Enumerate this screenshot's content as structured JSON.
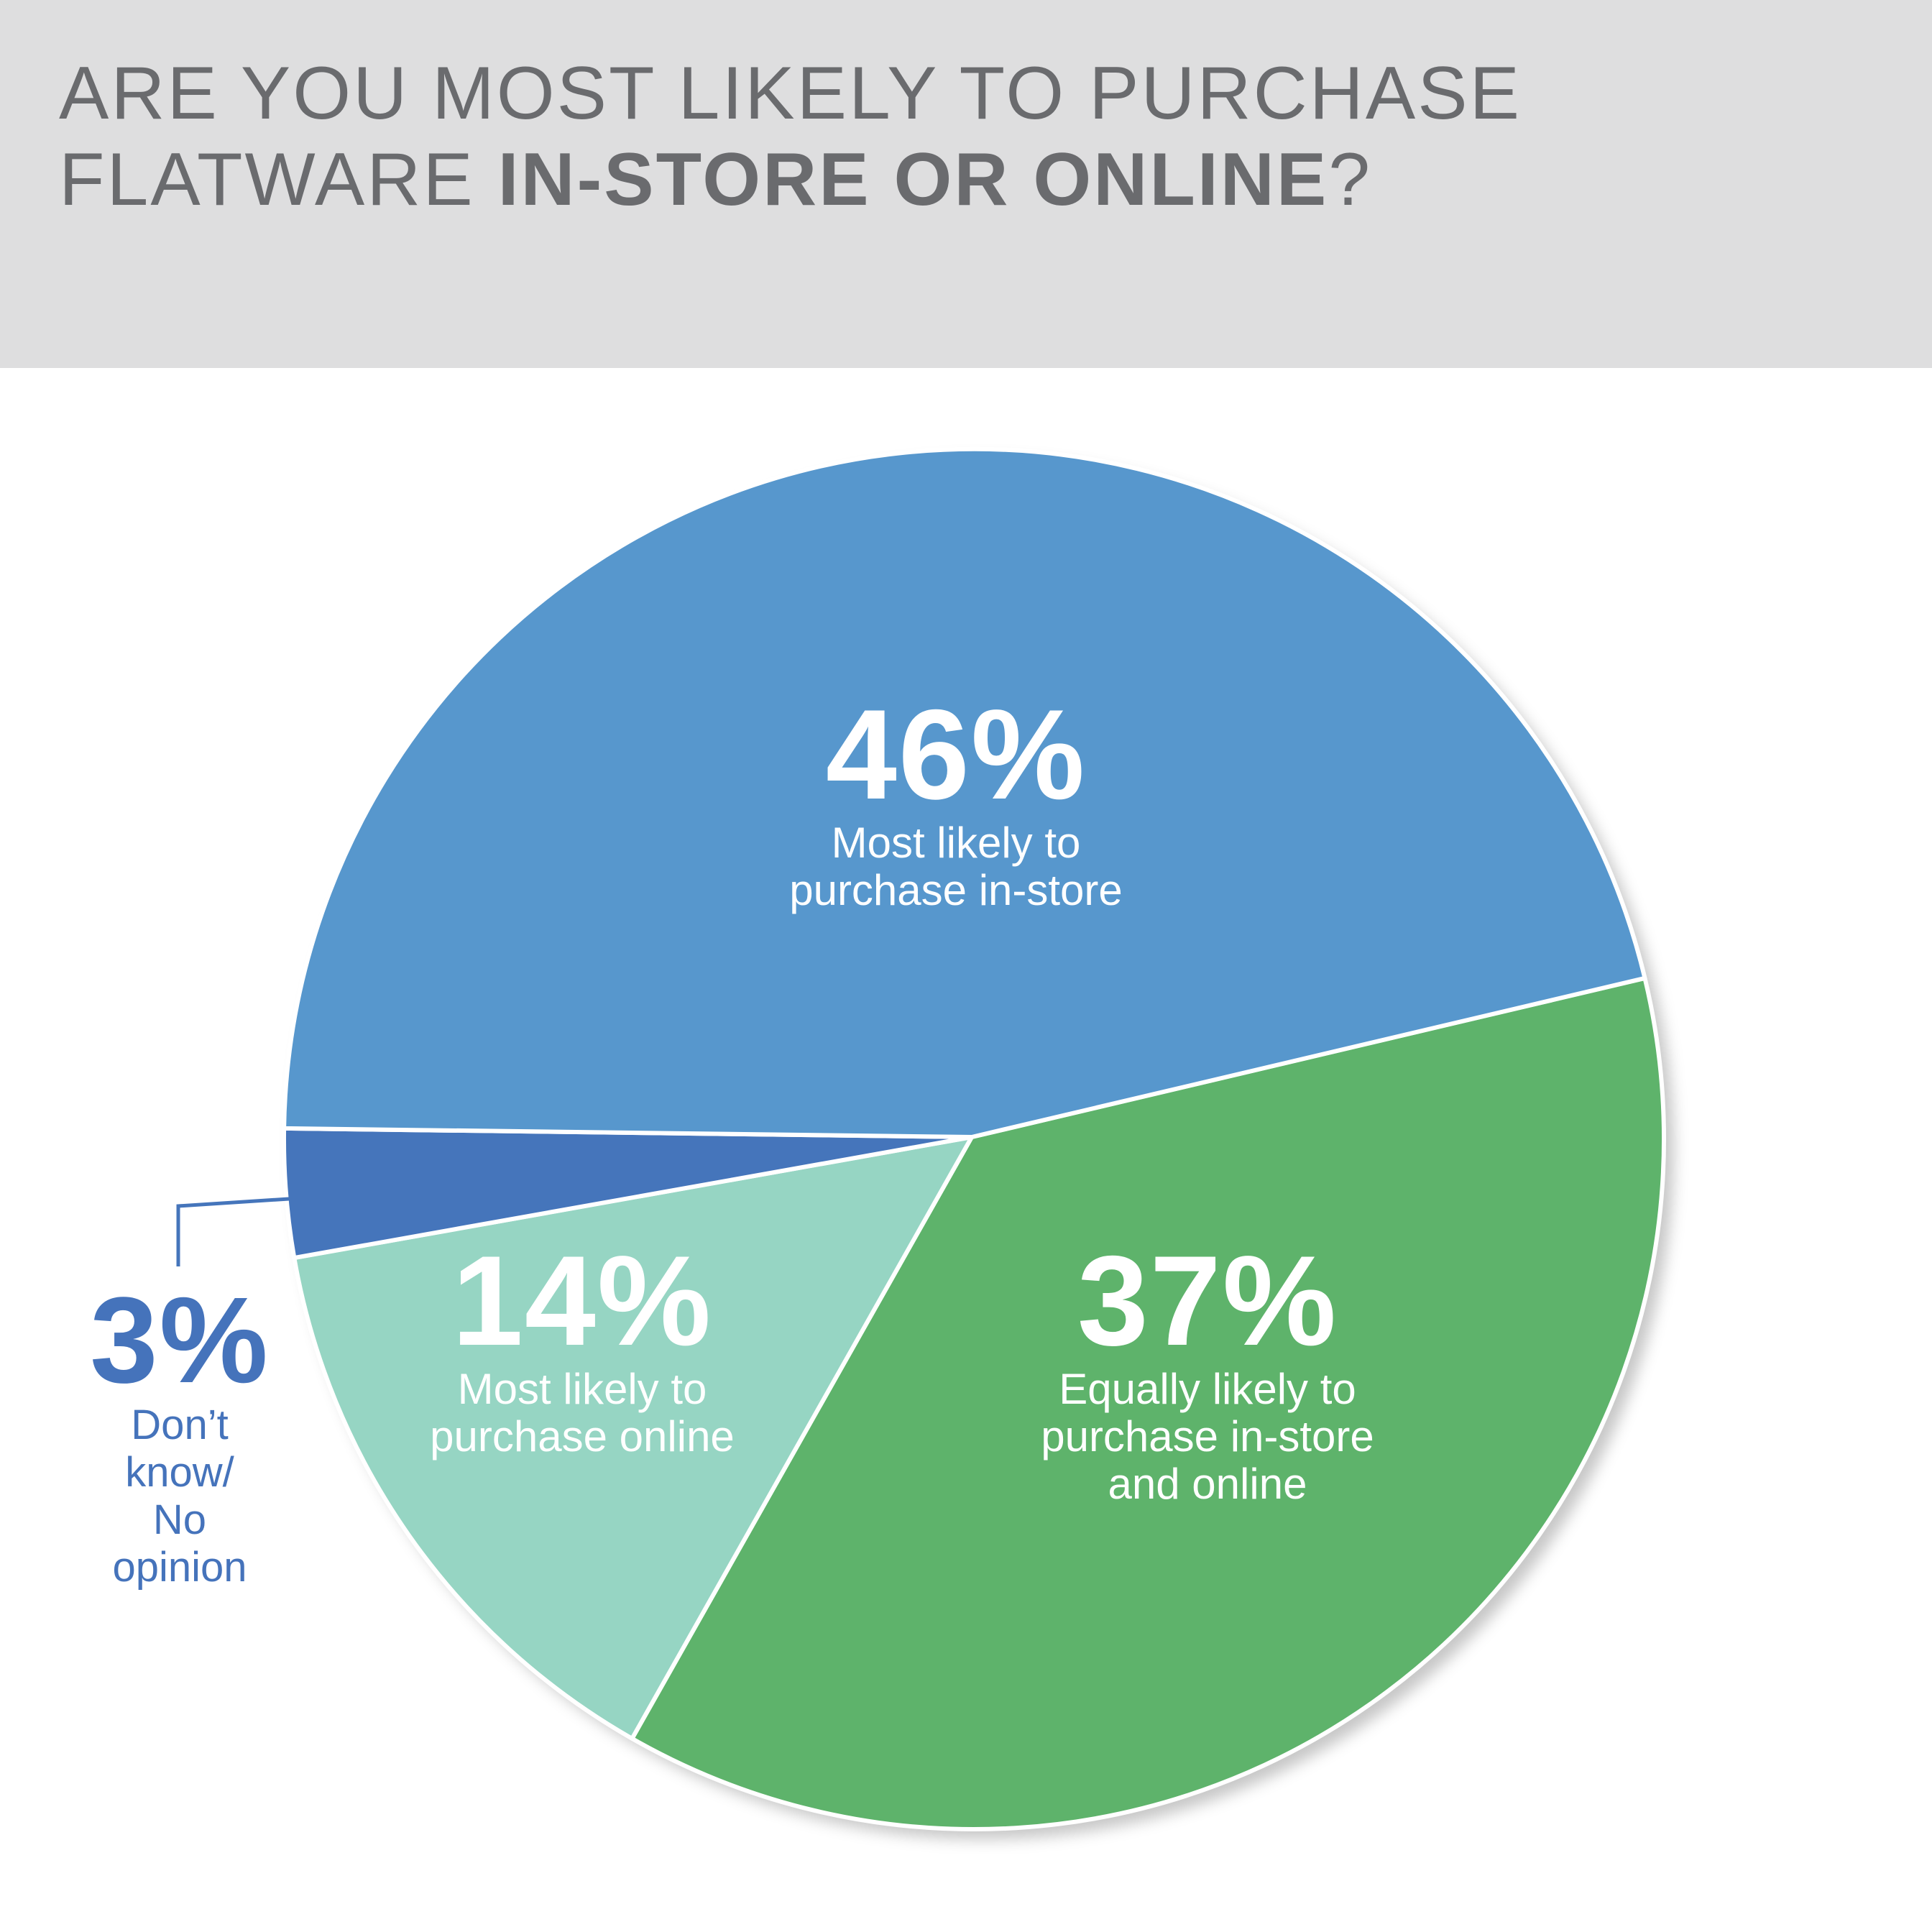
{
  "header": {
    "title_line1": "ARE YOU MOST LIKELY TO PURCHASE",
    "title_line2_regular": "FLATWARE ",
    "title_line2_bold": "IN-STORE OR ONLINE",
    "title_line2_end": "?"
  },
  "colors": {
    "header_bg": "#dededf",
    "title_text": "#6a6b6e",
    "in_store": "#5797cd",
    "equally": "#5eb36b",
    "online": "#96d5c3",
    "dont_know": "#4575bb",
    "separator": "#ffffff"
  },
  "chart_data": {
    "type": "pie",
    "unit": "%",
    "slices": [
      {
        "key": "in_store",
        "value": 46,
        "label_pct": "46%",
        "label": "Most likely to\npurchase in-store",
        "color": "#5797cd"
      },
      {
        "key": "equally",
        "value": 37,
        "label_pct": "37%",
        "label": "Equally likely to\npurchase in-store\nand online",
        "color": "#5eb36b"
      },
      {
        "key": "online",
        "value": 14,
        "label_pct": "14%",
        "label": "Most likely to\npurchase online",
        "color": "#96d5c3"
      },
      {
        "key": "dont_know",
        "value": 3,
        "label_pct": "3%",
        "label": "Don’t\nknow/\nNo\nopinion",
        "color": "#4575bb"
      }
    ]
  }
}
